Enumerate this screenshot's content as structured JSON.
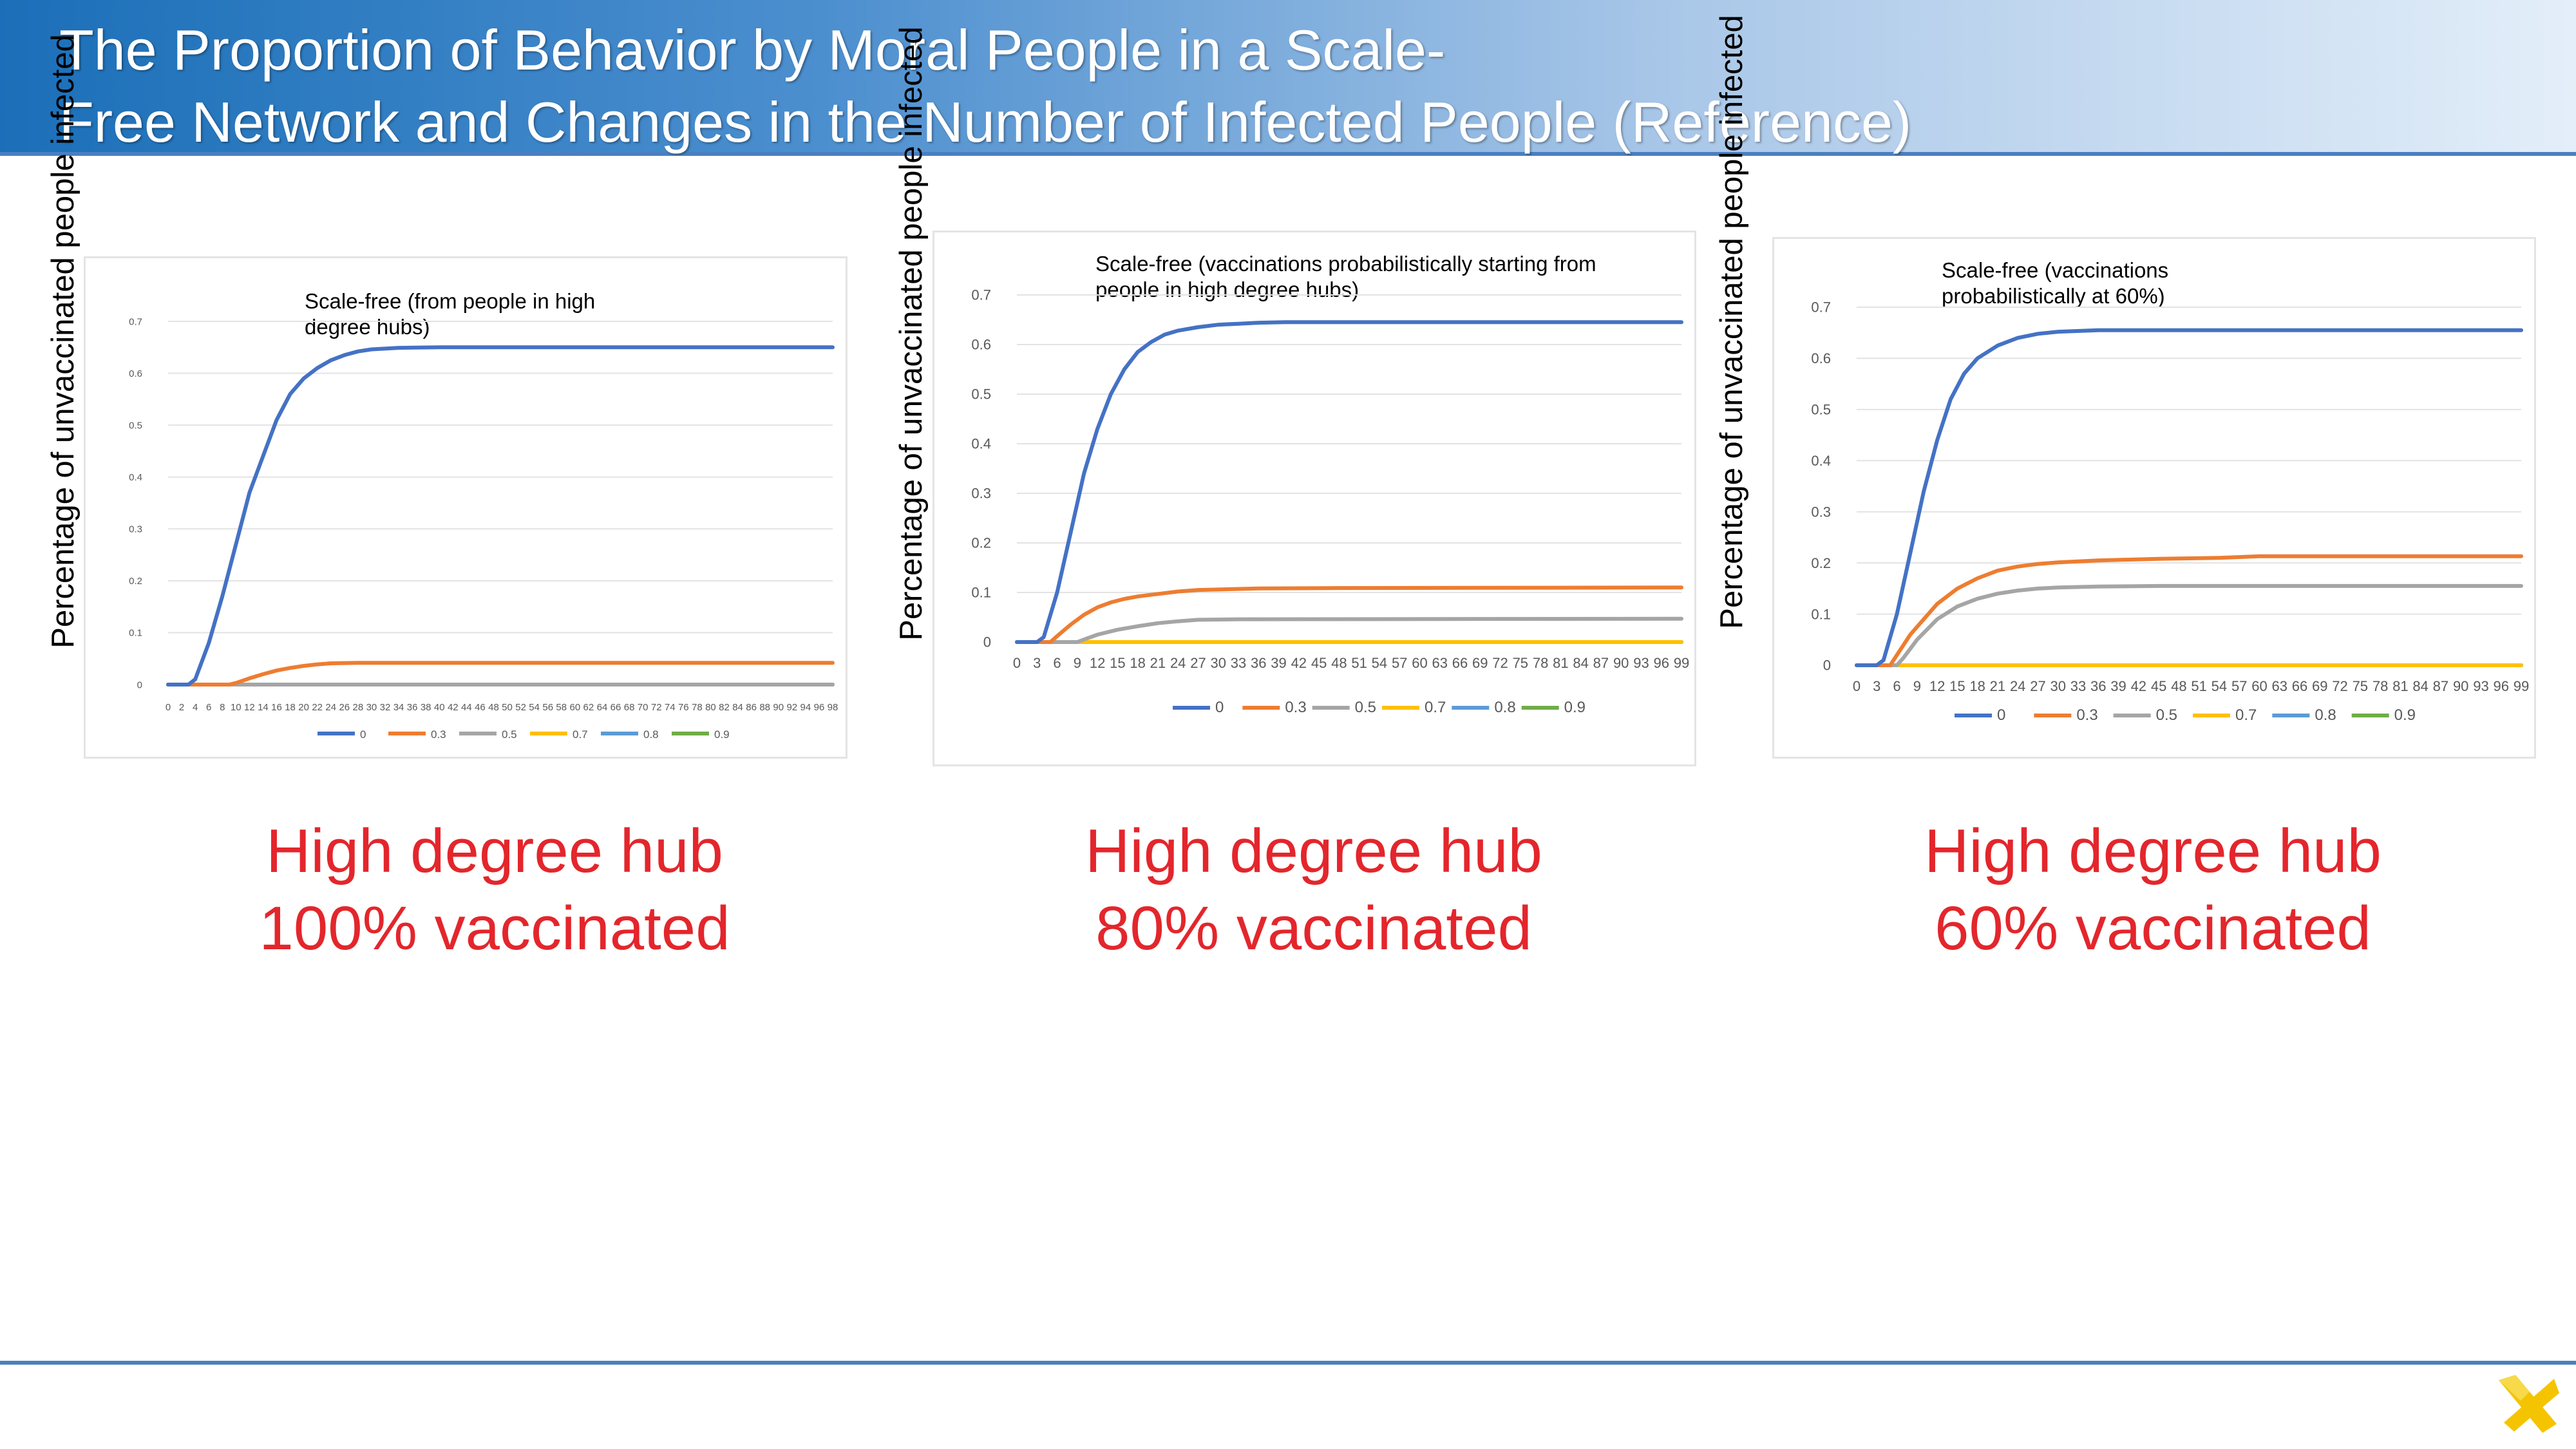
{
  "slide": {
    "title_lines": [
      "The Proportion of Behavior by Moral People in a Scale-",
      "Free Network and Changes in the Number of Infected People (Reference)"
    ],
    "y_axis_label": "Percentage of unvaccinated people infected"
  },
  "colors": {
    "header_start": "#1b6fb8",
    "caption_red": "#e3262c",
    "logo_yellow": "#f5c400"
  },
  "panels": [
    {
      "caption_line1": "High degree hub",
      "caption_line2": "100% vaccinated"
    },
    {
      "caption_line1": "High degree hub",
      "caption_line2": "80% vaccinated"
    },
    {
      "caption_line1": "High degree hub",
      "caption_line2": "60% vaccinated"
    }
  ],
  "chart_data": [
    {
      "type": "line",
      "title_lines": [
        "Scale-free (from people in high",
        "degree hubs)"
      ],
      "x_tick_labels": [
        "0",
        "2",
        "4",
        "6",
        "8",
        "10",
        "12",
        "14",
        "16",
        "18",
        "20",
        "22",
        "24",
        "26",
        "28",
        "30",
        "32",
        "34",
        "36",
        "38",
        "40",
        "42",
        "44",
        "46",
        "48",
        "50",
        "52",
        "54",
        "56",
        "58",
        "60",
        "62",
        "64",
        "66",
        "68",
        "70",
        "72",
        "74",
        "76",
        "78",
        "80",
        "82",
        "84",
        "86",
        "88",
        "90",
        "92",
        "94",
        "96",
        "98"
      ],
      "y_tick_labels": [
        "0",
        "0.1",
        "0.2",
        "0.3",
        "0.4",
        "0.5",
        "0.6",
        "0.7"
      ],
      "xlim": [
        0,
        98
      ],
      "ylim": [
        0,
        0.7
      ],
      "grid": true,
      "legend_position": "bottom",
      "series": [
        {
          "name": "0",
          "color": "#4472c4",
          "points": [
            [
              0,
              0
            ],
            [
              3,
              0
            ],
            [
              4,
              0.01
            ],
            [
              6,
              0.08
            ],
            [
              8,
              0.17
            ],
            [
              10,
              0.27
            ],
            [
              12,
              0.37
            ],
            [
              14,
              0.44
            ],
            [
              16,
              0.51
            ],
            [
              18,
              0.56
            ],
            [
              20,
              0.59
            ],
            [
              22,
              0.61
            ],
            [
              24,
              0.625
            ],
            [
              26,
              0.635
            ],
            [
              28,
              0.642
            ],
            [
              30,
              0.646
            ],
            [
              34,
              0.649
            ],
            [
              40,
              0.65
            ],
            [
              98,
              0.65
            ]
          ]
        },
        {
          "name": "0.3",
          "color": "#ed7d31",
          "points": [
            [
              0,
              0
            ],
            [
              9,
              0
            ],
            [
              10,
              0.003
            ],
            [
              12,
              0.012
            ],
            [
              14,
              0.02
            ],
            [
              16,
              0.027
            ],
            [
              18,
              0.032
            ],
            [
              20,
              0.036
            ],
            [
              22,
              0.039
            ],
            [
              24,
              0.041
            ],
            [
              28,
              0.042
            ],
            [
              98,
              0.042
            ]
          ]
        },
        {
          "name": "0.5",
          "color": "#a5a5a5",
          "points": [
            [
              0,
              0
            ],
            [
              98,
              0
            ]
          ]
        },
        {
          "name": "0.7",
          "color": "#ffc000",
          "points": [
            [
              0,
              0
            ],
            [
              98,
              0
            ]
          ]
        },
        {
          "name": "0.8",
          "color": "#5b9bd5",
          "points": [
            [
              0,
              0
            ],
            [
              98,
              0
            ]
          ]
        },
        {
          "name": "0.9",
          "color": "#70ad47",
          "points": [
            [
              0,
              0
            ],
            [
              98,
              0
            ]
          ]
        }
      ]
    },
    {
      "type": "line",
      "title_lines": [
        "Scale-free (vaccinations probabilistically starting from",
        "people in high degree hubs)"
      ],
      "x_tick_labels": [
        "0",
        "3",
        "6",
        "9",
        "12",
        "15",
        "18",
        "21",
        "24",
        "27",
        "30",
        "33",
        "36",
        "39",
        "42",
        "45",
        "48",
        "51",
        "54",
        "57",
        "60",
        "63",
        "66",
        "69",
        "72",
        "75",
        "78",
        "81",
        "84",
        "87",
        "90",
        "93",
        "96",
        "99"
      ],
      "y_tick_labels": [
        "0",
        "0.1",
        "0.2",
        "0.3",
        "0.4",
        "0.5",
        "0.6",
        "0.7"
      ],
      "xlim": [
        0,
        99
      ],
      "ylim": [
        0,
        0.7
      ],
      "grid": true,
      "legend_position": "bottom",
      "series": [
        {
          "name": "0",
          "color": "#4472c4",
          "points": [
            [
              0,
              0
            ],
            [
              3,
              0
            ],
            [
              4,
              0.01
            ],
            [
              6,
              0.1
            ],
            [
              8,
              0.22
            ],
            [
              10,
              0.34
            ],
            [
              12,
              0.43
            ],
            [
              14,
              0.5
            ],
            [
              16,
              0.55
            ],
            [
              18,
              0.585
            ],
            [
              20,
              0.605
            ],
            [
              22,
              0.62
            ],
            [
              24,
              0.628
            ],
            [
              27,
              0.635
            ],
            [
              30,
              0.64
            ],
            [
              33,
              0.642
            ],
            [
              36,
              0.644
            ],
            [
              40,
              0.645
            ],
            [
              99,
              0.645
            ]
          ]
        },
        {
          "name": "0.3",
          "color": "#ed7d31",
          "points": [
            [
              0,
              0
            ],
            [
              5,
              0
            ],
            [
              6,
              0.012
            ],
            [
              8,
              0.035
            ],
            [
              10,
              0.055
            ],
            [
              12,
              0.07
            ],
            [
              14,
              0.08
            ],
            [
              16,
              0.087
            ],
            [
              18,
              0.092
            ],
            [
              21,
              0.097
            ],
            [
              24,
              0.102
            ],
            [
              27,
              0.105
            ],
            [
              30,
              0.106
            ],
            [
              36,
              0.108
            ],
            [
              48,
              0.109
            ],
            [
              99,
              0.11
            ]
          ]
        },
        {
          "name": "0.5",
          "color": "#a5a5a5",
          "points": [
            [
              0,
              0
            ],
            [
              9,
              0
            ],
            [
              10,
              0.005
            ],
            [
              12,
              0.015
            ],
            [
              15,
              0.025
            ],
            [
              18,
              0.032
            ],
            [
              21,
              0.038
            ],
            [
              24,
              0.042
            ],
            [
              27,
              0.045
            ],
            [
              33,
              0.046
            ],
            [
              99,
              0.047
            ]
          ]
        },
        {
          "name": "0.7",
          "color": "#ffc000",
          "points": [
            [
              0,
              0
            ],
            [
              99,
              0
            ]
          ]
        },
        {
          "name": "0.8",
          "color": "#5b9bd5",
          "points": [
            [
              0,
              0
            ],
            [
              99,
              0
            ]
          ]
        },
        {
          "name": "0.9",
          "color": "#70ad47",
          "points": [
            [
              0,
              0
            ],
            [
              99,
              0
            ]
          ]
        }
      ]
    },
    {
      "type": "line",
      "title_lines": [
        "Scale-free (vaccinations",
        "probabilistically at 60%)"
      ],
      "x_tick_labels": [
        "0",
        "3",
        "6",
        "9",
        "12",
        "15",
        "18",
        "21",
        "24",
        "27",
        "30",
        "33",
        "36",
        "39",
        "42",
        "45",
        "48",
        "51",
        "54",
        "57",
        "60",
        "63",
        "66",
        "69",
        "72",
        "75",
        "78",
        "81",
        "84",
        "87",
        "90",
        "93",
        "96",
        "99"
      ],
      "y_tick_labels": [
        "0",
        "0.1",
        "0.2",
        "0.3",
        "0.4",
        "0.5",
        "0.6",
        "0.7"
      ],
      "xlim": [
        0,
        99
      ],
      "ylim": [
        0,
        0.7
      ],
      "grid": true,
      "legend_position": "bottom",
      "series": [
        {
          "name": "0",
          "color": "#4472c4",
          "points": [
            [
              0,
              0
            ],
            [
              3,
              0
            ],
            [
              4,
              0.01
            ],
            [
              6,
              0.1
            ],
            [
              8,
              0.22
            ],
            [
              10,
              0.34
            ],
            [
              12,
              0.44
            ],
            [
              14,
              0.52
            ],
            [
              16,
              0.57
            ],
            [
              18,
              0.6
            ],
            [
              21,
              0.625
            ],
            [
              24,
              0.64
            ],
            [
              27,
              0.648
            ],
            [
              30,
              0.652
            ],
            [
              36,
              0.655
            ],
            [
              99,
              0.655
            ]
          ]
        },
        {
          "name": "0.3",
          "color": "#ed7d31",
          "points": [
            [
              0,
              0
            ],
            [
              5,
              0
            ],
            [
              6,
              0.02
            ],
            [
              8,
              0.06
            ],
            [
              10,
              0.09
            ],
            [
              12,
              0.12
            ],
            [
              15,
              0.15
            ],
            [
              18,
              0.17
            ],
            [
              21,
              0.185
            ],
            [
              24,
              0.193
            ],
            [
              27,
              0.198
            ],
            [
              30,
              0.201
            ],
            [
              36,
              0.205
            ],
            [
              45,
              0.208
            ],
            [
              54,
              0.21
            ],
            [
              60,
              0.213
            ],
            [
              99,
              0.213
            ]
          ]
        },
        {
          "name": "0.5",
          "color": "#a5a5a5",
          "points": [
            [
              0,
              0
            ],
            [
              6,
              0
            ],
            [
              7,
              0.015
            ],
            [
              9,
              0.05
            ],
            [
              12,
              0.09
            ],
            [
              15,
              0.115
            ],
            [
              18,
              0.13
            ],
            [
              21,
              0.14
            ],
            [
              24,
              0.146
            ],
            [
              27,
              0.15
            ],
            [
              30,
              0.152
            ],
            [
              36,
              0.154
            ],
            [
              45,
              0.155
            ],
            [
              99,
              0.155
            ]
          ]
        },
        {
          "name": "0.7",
          "color": "#ffc000",
          "points": [
            [
              0,
              0
            ],
            [
              99,
              0
            ]
          ]
        },
        {
          "name": "0.8",
          "color": "#5b9bd5",
          "points": [
            [
              0,
              0
            ],
            [
              99,
              0
            ]
          ]
        },
        {
          "name": "0.9",
          "color": "#70ad47",
          "points": [
            [
              0,
              0
            ],
            [
              99,
              0
            ]
          ]
        }
      ]
    }
  ]
}
